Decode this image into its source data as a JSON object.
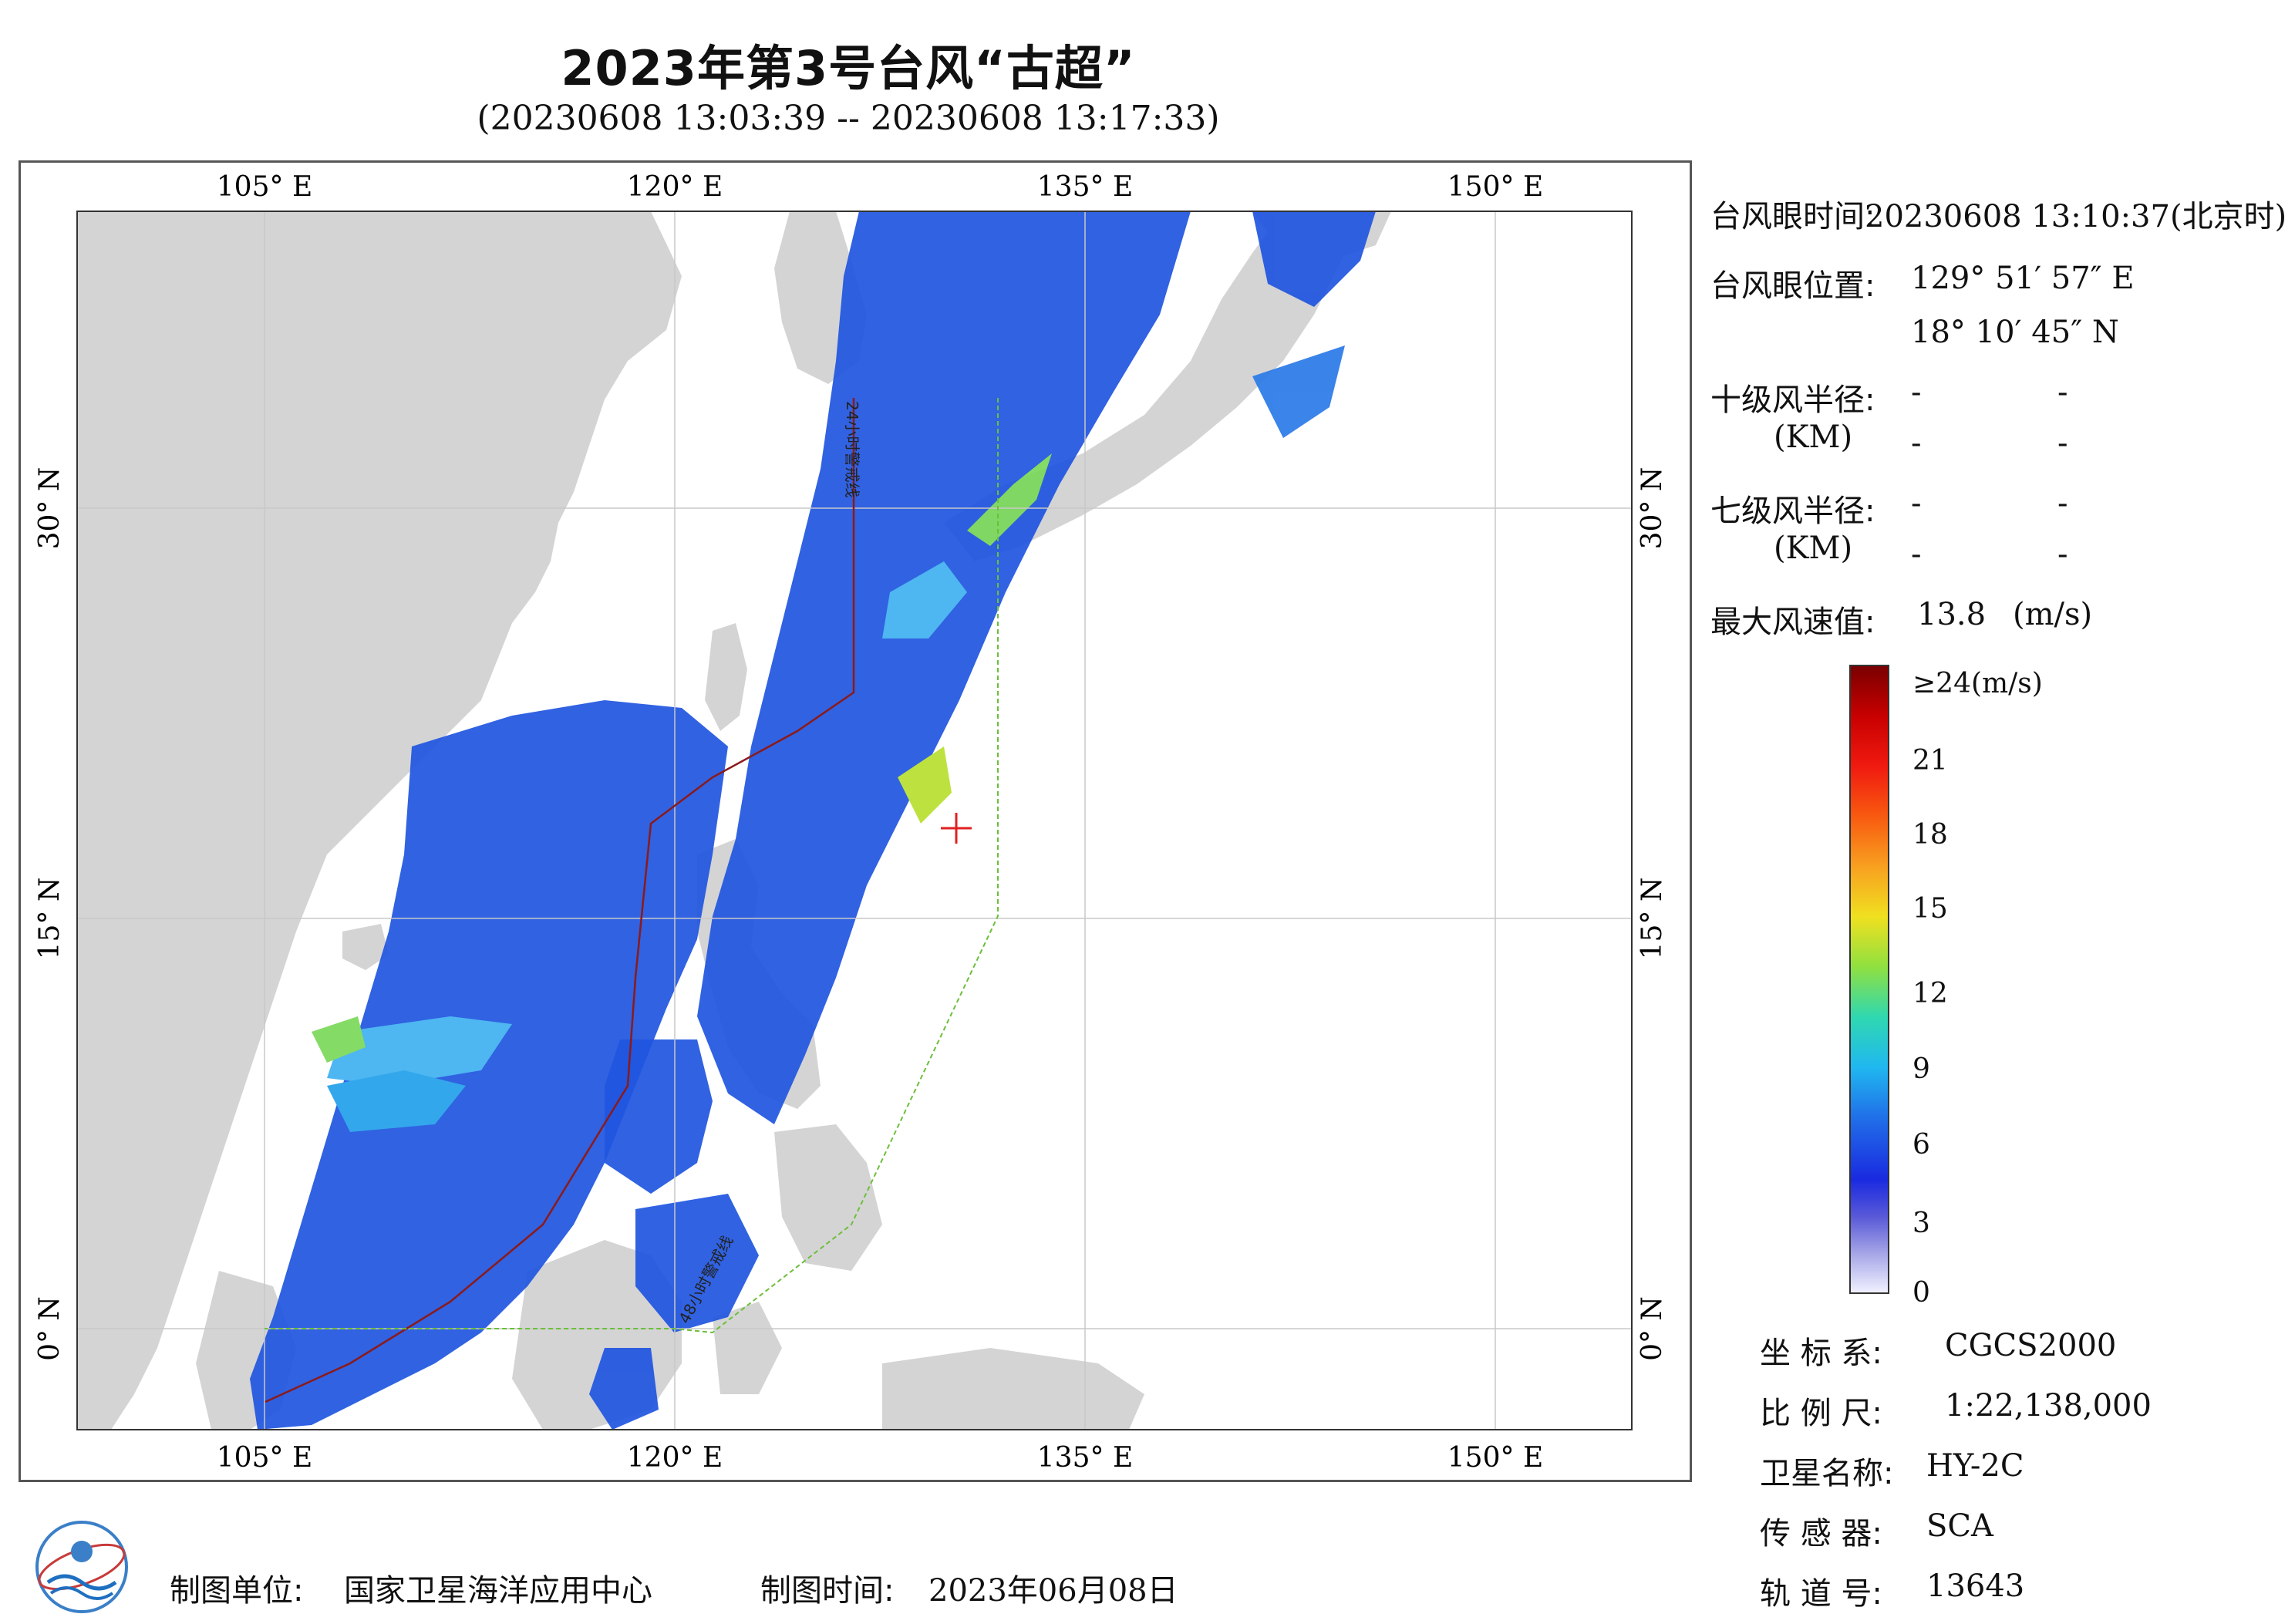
{
  "title": "2023年第3号台风“古超”",
  "subtitle": "(20230608 13:03:39 -- 20230608 13:17:33)",
  "map": {
    "lon_top_labels": [
      "105° E",
      "120° E",
      "135° E",
      "150° E"
    ],
    "lon_bottom_labels": [
      "105° E",
      "120° E",
      "135° E",
      "150° E"
    ],
    "lat_left_labels": [
      "30° N",
      "15° N",
      "0° N"
    ],
    "lat_right_labels": [
      "30° N",
      "15° N",
      "0° N"
    ],
    "track_label_north": "24小时警戒线",
    "track_label_south": "48小时警戒线",
    "colors": {
      "land": "#d4d4d4",
      "sea": "#ffffff",
      "warning_line_24h": "#8b1a1a",
      "warning_line_48h": "#6bbf3a",
      "typhoon_eye": "#e02020"
    }
  },
  "info": {
    "eye_time_label": "台风眼时间:",
    "eye_time_value": "20230608 13:10:37(北京时)",
    "eye_pos_label": "台风眼位置:",
    "eye_lon": "129° 51′ 57″ E",
    "eye_lat": "18° 10′ 45″ N",
    "r10_label": "十级风半径:",
    "r7_label": "七级风半径:",
    "km_unit": "(KM)",
    "dash": "-",
    "max_wind_label": "最大风速值:",
    "max_wind_value": "13.8",
    "max_wind_unit": "(m/s)"
  },
  "colorbar": {
    "labels": [
      "≥24(m/s)",
      "21",
      "18",
      "15",
      "12",
      "9",
      "6",
      "3",
      "0"
    ]
  },
  "meta": {
    "crs_label": "坐 标 系:",
    "crs_value": "CGCS2000",
    "scale_label": "比 例 尺:",
    "scale_value": "1:22,138,000",
    "satellite_label": "卫星名称:",
    "satellite_value": "HY-2C",
    "sensor_label": "传 感 器:",
    "sensor_value": "SCA",
    "orbit_label": "轨 道 号:",
    "orbit_value": "13643"
  },
  "footer": {
    "unit_label": "制图单位:",
    "unit_value": "国家卫星海洋应用中心",
    "time_label": "制图时间:",
    "time_value": "2023年06月08日"
  }
}
